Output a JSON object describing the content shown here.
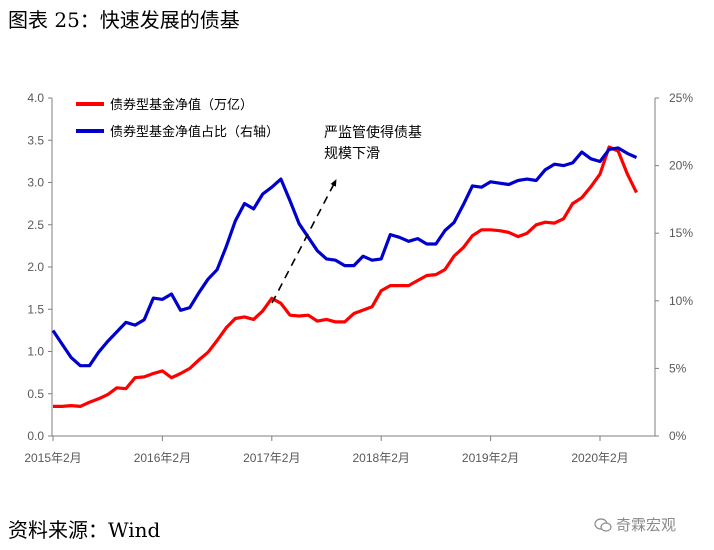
{
  "figure_title": "图表 25：快速发展的债基",
  "source_note": "资料来源：Wind",
  "watermark": "奇霖宏观",
  "chart_data": {
    "type": "line",
    "title": "",
    "x": [
      "2015-02",
      "2015-03",
      "2015-04",
      "2015-05",
      "2015-06",
      "2015-07",
      "2015-08",
      "2015-09",
      "2015-10",
      "2015-11",
      "2015-12",
      "2016-01",
      "2016-02",
      "2016-03",
      "2016-04",
      "2016-05",
      "2016-06",
      "2016-07",
      "2016-08",
      "2016-09",
      "2016-10",
      "2016-11",
      "2016-12",
      "2017-01",
      "2017-02",
      "2017-03",
      "2017-04",
      "2017-05",
      "2017-06",
      "2017-07",
      "2017-08",
      "2017-09",
      "2017-10",
      "2017-11",
      "2017-12",
      "2018-01",
      "2018-02",
      "2018-03",
      "2018-04",
      "2018-05",
      "2018-06",
      "2018-07",
      "2018-08",
      "2018-09",
      "2018-10",
      "2018-11",
      "2018-12",
      "2019-01",
      "2019-02",
      "2019-03",
      "2019-04",
      "2019-05",
      "2019-06",
      "2019-07",
      "2019-08",
      "2019-09",
      "2019-10",
      "2019-11",
      "2019-12",
      "2020-01",
      "2020-02",
      "2020-03",
      "2020-04",
      "2020-05",
      "2020-06"
    ],
    "x_tick_labels": [
      "2015年2月",
      "2016年2月",
      "2017年2月",
      "2018年2月",
      "2019年2月",
      "2020年2月"
    ],
    "y_left": {
      "ticks": [
        "0.0",
        "0.5",
        "1.0",
        "1.5",
        "2.0",
        "2.5",
        "3.0",
        "3.5",
        "4.0"
      ],
      "range": [
        0,
        4
      ]
    },
    "y_right": {
      "ticks": [
        "0%",
        "5%",
        "10%",
        "15%",
        "20%",
        "25%"
      ],
      "range": [
        0,
        25
      ]
    },
    "series": [
      {
        "name": "债券型基金净值（万亿）",
        "axis": "left",
        "color": "#ff0000",
        "values": [
          0.35,
          0.35,
          0.36,
          0.35,
          0.4,
          0.44,
          0.49,
          0.57,
          0.56,
          0.69,
          0.7,
          0.74,
          0.77,
          0.69,
          0.74,
          0.8,
          0.9,
          0.99,
          1.13,
          1.28,
          1.39,
          1.41,
          1.38,
          1.48,
          1.63,
          1.57,
          1.43,
          1.42,
          1.43,
          1.36,
          1.38,
          1.35,
          1.35,
          1.45,
          1.49,
          1.53,
          1.72,
          1.78,
          1.78,
          1.78,
          1.84,
          1.9,
          1.91,
          1.97,
          2.13,
          2.23,
          2.37,
          2.44,
          2.44,
          2.43,
          2.41,
          2.36,
          2.4,
          2.5,
          2.53,
          2.52,
          2.57,
          2.75,
          2.82,
          2.95,
          3.1,
          3.42,
          3.37,
          3.1,
          2.88
        ]
      },
      {
        "name": "债券型基金净值占比（右轴）",
        "axis": "right",
        "color": "#0000cc",
        "values": [
          7.8,
          6.8,
          5.8,
          5.2,
          5.2,
          6.2,
          7.0,
          7.7,
          8.4,
          8.2,
          8.6,
          10.2,
          10.1,
          10.5,
          9.3,
          9.5,
          10.6,
          11.6,
          12.3,
          14.0,
          15.9,
          17.2,
          16.8,
          17.9,
          18.4,
          19.0,
          17.4,
          15.7,
          14.7,
          13.7,
          13.1,
          13.0,
          12.6,
          12.6,
          13.3,
          13.0,
          13.1,
          14.9,
          14.7,
          14.4,
          14.6,
          14.2,
          14.2,
          15.2,
          15.8,
          17.1,
          18.5,
          18.4,
          18.8,
          18.7,
          18.6,
          18.9,
          19.0,
          18.9,
          19.7,
          20.1,
          20.0,
          20.2,
          21.0,
          20.5,
          20.3,
          21.2,
          21.3,
          20.9,
          20.6
        ]
      }
    ],
    "legend_position": "top-left",
    "annotation": {
      "line1": "严监管使得债基",
      "line2": "规模下滑"
    },
    "grid": false
  }
}
